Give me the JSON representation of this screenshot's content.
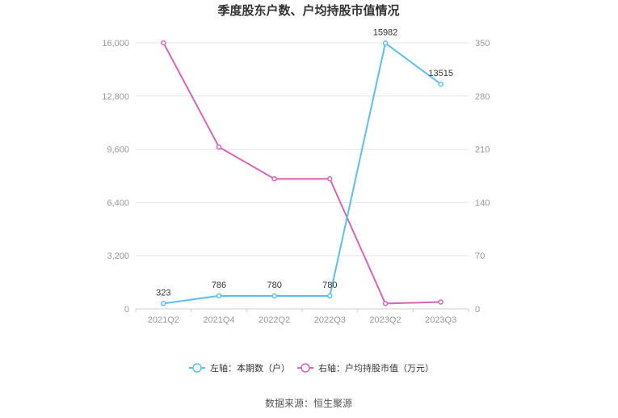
{
  "chart_data": {
    "type": "line",
    "title": "季度股东户数、户均持股市值情况",
    "categories": [
      "2021Q2",
      "2021Q4",
      "2022Q2",
      "2022Q3",
      "2023Q2",
      "2023Q3"
    ],
    "y_left": {
      "ticks": [
        "0",
        "3,200",
        "6,400",
        "9,600",
        "12,800",
        "16,000"
      ],
      "range": [
        0,
        16000
      ]
    },
    "y_right": {
      "ticks": [
        "0",
        "70",
        "140",
        "210",
        "280",
        "350"
      ],
      "range": [
        0,
        350
      ]
    },
    "grid": true,
    "legend_position": "bottom",
    "series": [
      {
        "name": "左轴：本期数（户）",
        "axis": "left",
        "color": "#5bc0f0",
        "values": [
          323,
          786,
          780,
          780,
          15982,
          13515
        ],
        "labels": [
          "323",
          "786",
          "780",
          "780",
          "15982",
          "13515"
        ]
      },
      {
        "name": "右轴：户均持股市值（万元）",
        "axis": "right",
        "color": "#d966b5",
        "values": [
          350,
          213,
          171,
          171,
          7,
          9
        ]
      }
    ]
  },
  "source": "数据来源：恒生聚源"
}
